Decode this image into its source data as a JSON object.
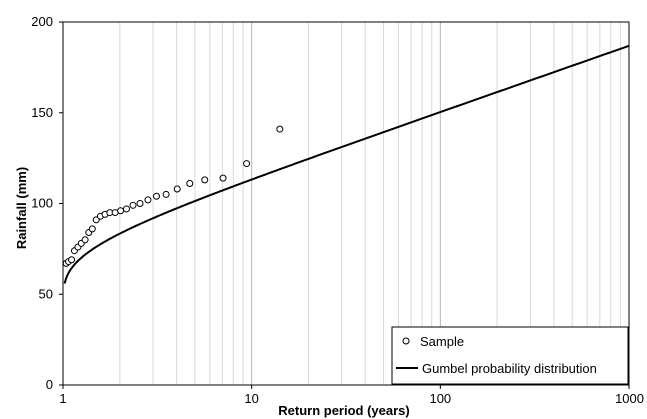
{
  "chart_data": {
    "type": "scatter",
    "xlabel": "Return period (years)",
    "ylabel": "Rainfall (mm)",
    "xscale": "log",
    "xlim": [
      1,
      1000
    ],
    "ylim": [
      0,
      200
    ],
    "x_ticks": [
      1,
      10,
      100,
      1000
    ],
    "x_tick_labels": [
      "1",
      "10",
      "100",
      "1000"
    ],
    "y_ticks": [
      0,
      50,
      100,
      150,
      200
    ],
    "y_tick_labels": [
      "0",
      "50",
      "100",
      "150",
      "200"
    ],
    "grid": "vertical minor and major lines on log x axis",
    "legend_position": "bottom-right",
    "series": [
      {
        "name": "Sample",
        "kind": "scatter",
        "marker": "open-circle",
        "color": "#000000",
        "points": [
          [
            1.04,
            67
          ],
          [
            1.07,
            68
          ],
          [
            1.11,
            69
          ],
          [
            1.15,
            74
          ],
          [
            1.2,
            76
          ],
          [
            1.25,
            78
          ],
          [
            1.31,
            80
          ],
          [
            1.37,
            84
          ],
          [
            1.43,
            86
          ],
          [
            1.5,
            91
          ],
          [
            1.58,
            93
          ],
          [
            1.67,
            94
          ],
          [
            1.77,
            95
          ],
          [
            1.89,
            95
          ],
          [
            2.02,
            96
          ],
          [
            2.17,
            97
          ],
          [
            2.35,
            99
          ],
          [
            2.56,
            100
          ],
          [
            2.82,
            102
          ],
          [
            3.13,
            104
          ],
          [
            3.52,
            105
          ],
          [
            4.03,
            108
          ],
          [
            4.7,
            111
          ],
          [
            5.64,
            113
          ],
          [
            7.05,
            114
          ],
          [
            9.4,
            122
          ],
          [
            14.1,
            141
          ]
        ]
      },
      {
        "name": "Gumbel probability distribution",
        "kind": "line",
        "color": "#000000",
        "params": {
          "u": 77.6,
          "alpha": 15.82
        }
      }
    ]
  }
}
